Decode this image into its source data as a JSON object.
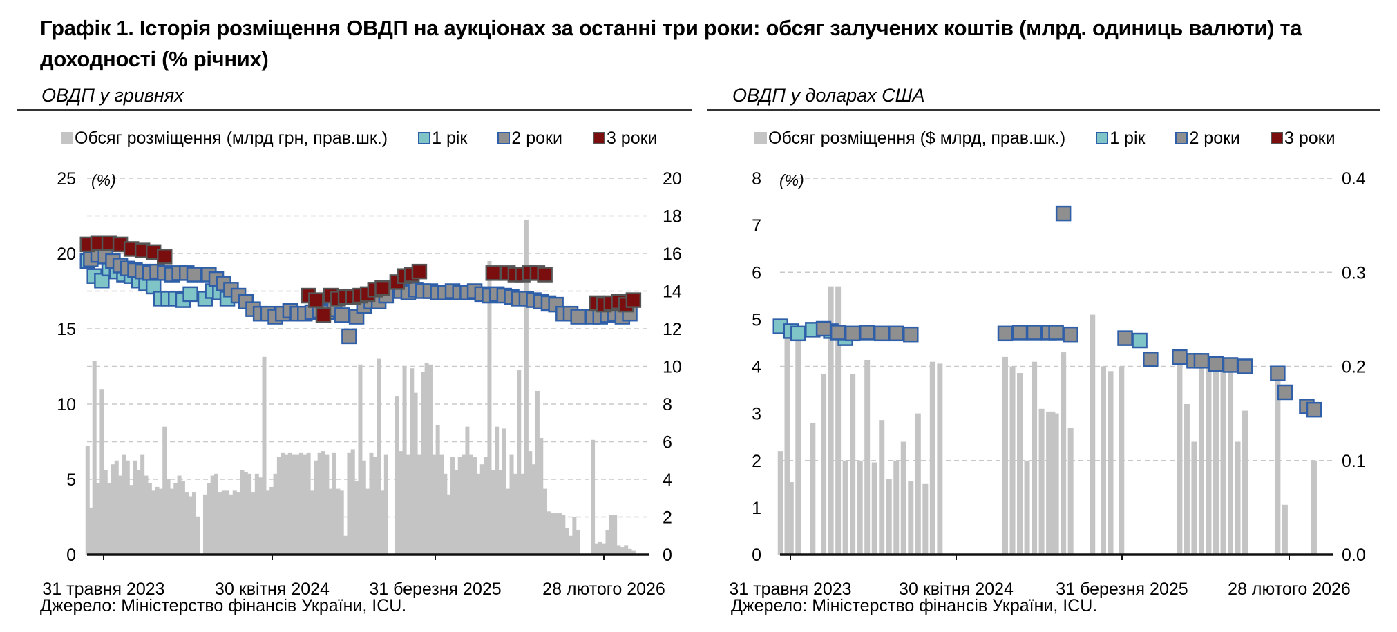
{
  "title": "Графік 1. Історія розміщення ОВДП на аукціонах за останні три роки: обсяг залучених коштів (млрд. одиниць валюти) та доходності (% річних)",
  "colors": {
    "volume": "#c4c4c4",
    "y1_fill": "#7fc5c8",
    "y2_fill": "#8f8f8f",
    "y3_fill": "#7a0d0d",
    "marker_border": "#2f5fa8",
    "grid": "#c8c8c8"
  },
  "panels": {
    "uah": {
      "subtitle": "ОВДП у гривнях",
      "legend": {
        "volume": "Обсяг розміщення (млрд грн, прав.шк.)",
        "y1": "1 рік",
        "y2": "2 роки",
        "y3": "3 роки"
      },
      "unit_label": "(%)",
      "source": "Джерело: Міністерство фінансів України, ICU."
    },
    "usd": {
      "subtitle": "ОВДП у доларах США",
      "legend": {
        "volume": "Обсяг розміщення ($ млрд, прав.шк.)",
        "y1": "1 рік",
        "y2": "2 роки",
        "y3": "3 роки"
      },
      "unit_label": "(%)",
      "source": "Джерело: Міністерство фінансів України, ICU."
    }
  },
  "chart_data": [
    {
      "type": "bar+scatter",
      "id": "uah",
      "x_tick_labels": [
        "31 травня 2023",
        "30 квітня 2024",
        "31 березня 2025",
        "28 лютого 2026"
      ],
      "x_range": [
        "2023-05-31",
        "2026-04-30"
      ],
      "y_left": {
        "min": 0,
        "max": 25,
        "ticks": [
          0,
          5,
          10,
          15,
          20,
          25
        ]
      },
      "y_right": {
        "min": 0,
        "max": 20,
        "ticks": [
          0,
          2,
          4,
          6,
          8,
          10,
          12,
          14,
          16,
          18,
          20
        ]
      },
      "grid": true,
      "volume_series": {
        "name": "Обсяг розміщення (млрд грн, прав.шк.)",
        "axis": "right",
        "x": [
          "2023-06-01",
          "2023-06-07",
          "2023-06-14",
          "2023-06-21",
          "2023-06-28",
          "2023-07-05",
          "2023-07-12",
          "2023-07-19",
          "2023-07-26",
          "2023-08-02",
          "2023-08-09",
          "2023-08-16",
          "2023-08-23",
          "2023-08-30",
          "2023-09-06",
          "2023-09-13",
          "2023-09-20",
          "2023-09-27",
          "2023-10-04",
          "2023-10-11",
          "2023-10-18",
          "2023-10-25",
          "2023-11-01",
          "2023-11-08",
          "2023-11-15",
          "2023-11-22",
          "2023-11-29",
          "2023-12-06",
          "2023-12-13",
          "2023-12-20",
          "2023-12-27",
          "2024-01-10",
          "2024-01-17",
          "2024-01-24",
          "2024-01-31",
          "2024-02-07",
          "2024-02-14",
          "2024-02-21",
          "2024-02-28",
          "2024-03-06",
          "2024-03-13",
          "2024-03-20",
          "2024-03-27",
          "2024-04-03",
          "2024-04-10",
          "2024-04-17",
          "2024-04-24",
          "2024-05-01",
          "2024-05-08",
          "2024-05-15",
          "2024-05-22",
          "2024-05-29",
          "2024-06-05",
          "2024-06-12",
          "2024-06-19",
          "2024-06-26",
          "2024-07-03",
          "2024-07-10",
          "2024-07-17",
          "2024-07-24",
          "2024-07-31",
          "2024-08-07",
          "2024-08-14",
          "2024-08-21",
          "2024-08-28",
          "2024-09-04",
          "2024-09-11",
          "2024-09-18",
          "2024-09-25",
          "2024-10-02",
          "2024-10-09",
          "2024-10-16",
          "2024-10-23",
          "2024-10-30",
          "2024-11-06",
          "2024-11-13",
          "2024-11-20",
          "2024-11-27",
          "2024-12-04",
          "2024-12-11",
          "2024-12-18",
          "2025-01-08",
          "2025-01-15",
          "2025-01-22",
          "2025-01-29",
          "2025-02-05",
          "2025-02-12",
          "2025-02-19",
          "2025-02-26",
          "2025-03-05",
          "2025-03-12",
          "2025-03-19",
          "2025-03-26",
          "2025-04-02",
          "2025-04-09",
          "2025-04-16",
          "2025-04-23",
          "2025-04-30",
          "2025-05-07",
          "2025-05-14",
          "2025-05-21",
          "2025-05-28",
          "2025-06-04",
          "2025-06-11",
          "2025-06-18",
          "2025-06-25",
          "2025-07-02",
          "2025-07-09",
          "2025-07-16",
          "2025-07-23",
          "2025-07-30",
          "2025-08-06",
          "2025-08-13",
          "2025-08-20",
          "2025-08-27",
          "2025-09-03",
          "2025-09-10",
          "2025-09-17",
          "2025-09-24",
          "2025-10-01",
          "2025-10-08",
          "2025-10-15",
          "2025-10-22",
          "2025-10-29",
          "2025-11-05",
          "2025-11-12",
          "2025-11-19",
          "2025-11-26",
          "2025-12-03",
          "2025-12-10",
          "2025-12-17",
          "2026-01-14",
          "2026-01-21",
          "2026-01-28",
          "2026-02-04",
          "2026-02-11",
          "2026-02-18",
          "2026-02-25",
          "2026-03-04",
          "2026-03-11",
          "2026-03-18",
          "2026-03-25",
          "2026-04-01"
        ],
        "values": [
          5.8,
          2.5,
          10.3,
          3.8,
          8.8,
          4.5,
          3.8,
          4.8,
          5.0,
          4.2,
          5.3,
          5.0,
          3.7,
          5.0,
          4.5,
          5.3,
          4.2,
          3.8,
          3.4,
          3.6,
          3.5,
          6.8,
          4.0,
          3.5,
          3.8,
          4.2,
          3.9,
          3.3,
          3.1,
          3.3,
          2.0,
          3.2,
          3.8,
          4.2,
          4.3,
          3.3,
          3.4,
          3.4,
          3.2,
          3.4,
          3.3,
          4.5,
          4.4,
          4.3,
          3.3,
          4.3,
          4.1,
          10.5,
          3.4,
          3.6,
          4.3,
          5.2,
          5.4,
          5.3,
          5.4,
          5.3,
          5.3,
          5.4,
          5.3,
          5.4,
          3.4,
          5.0,
          5.4,
          5.5,
          5.3,
          3.5,
          5.4,
          3.5,
          3.4,
          1.0,
          5.4,
          5.6,
          3.9,
          10.1,
          5.0,
          3.5,
          5.4,
          5.2,
          10.4,
          3.4,
          5.3,
          8.4,
          5.5,
          10.0,
          5.3,
          9.9,
          8.6,
          5.3,
          9.7,
          10.2,
          10.1,
          5.3,
          6.9,
          5.3,
          4.3,
          3.2,
          5.2,
          4.5,
          5.2,
          5.3,
          6.8,
          5.3,
          5.2,
          4.3,
          4.8,
          5.2,
          15.6,
          4.5,
          6.8,
          4.5,
          6.7,
          3.5,
          5.3,
          4.3,
          9.8,
          4.3,
          17.8,
          5.5,
          4.8,
          8.7,
          6.2,
          3.5,
          2.3,
          2.2,
          2.2,
          2.2,
          2.1,
          1.4,
          1.0,
          2.0,
          1.3,
          6.1,
          0.6,
          0.7,
          0.6,
          1.3,
          2.1,
          2.1,
          0.5,
          0.4,
          0.5,
          0.3,
          0.2
        ]
      },
      "yield_series": [
        {
          "name": "1 рік",
          "axis": "left",
          "x": [
            "2023-06-01",
            "2023-06-14",
            "2023-06-28",
            "2023-07-12",
            "2023-07-26",
            "2023-08-09",
            "2023-08-23",
            "2023-09-06",
            "2023-09-20",
            "2023-10-04",
            "2023-10-18",
            "2023-11-01",
            "2023-11-15",
            "2023-11-29",
            "2023-12-13",
            "2024-01-10",
            "2024-01-24",
            "2024-02-07",
            "2024-02-21"
          ],
          "values": [
            19.5,
            18.5,
            18.2,
            19.0,
            18.8,
            18.6,
            18.5,
            18.2,
            18.0,
            17.8,
            17.0,
            17.0,
            17.0,
            16.9,
            17.3,
            17.0,
            17.5,
            17.4,
            17.0
          ]
        },
        {
          "name": "2 роки",
          "axis": "left",
          "x": [
            "2023-06-07",
            "2023-06-21",
            "2023-07-05",
            "2023-07-19",
            "2023-08-02",
            "2023-08-16",
            "2023-08-30",
            "2023-09-13",
            "2023-09-27",
            "2023-10-11",
            "2023-10-25",
            "2023-11-08",
            "2023-11-22",
            "2023-12-06",
            "2023-12-20",
            "2024-01-17",
            "2024-01-31",
            "2024-02-14",
            "2024-02-28",
            "2024-03-13",
            "2024-03-27",
            "2024-04-10",
            "2024-04-24",
            "2024-05-08",
            "2024-05-22",
            "2024-06-05",
            "2024-06-19",
            "2024-07-03",
            "2024-07-17",
            "2024-07-31",
            "2024-08-14",
            "2024-08-28",
            "2024-09-11",
            "2024-09-25",
            "2024-10-09",
            "2024-10-23",
            "2024-11-06",
            "2024-11-20",
            "2024-12-04",
            "2024-12-18",
            "2025-01-15",
            "2025-01-29",
            "2025-02-12",
            "2025-02-26",
            "2025-03-12",
            "2025-03-26",
            "2025-04-09",
            "2025-04-23",
            "2025-05-07",
            "2025-05-21",
            "2025-06-04",
            "2025-06-18",
            "2025-07-02",
            "2025-07-16",
            "2025-07-30",
            "2025-08-13",
            "2025-08-27",
            "2025-09-10",
            "2025-09-24",
            "2025-10-08",
            "2025-10-22",
            "2025-11-05",
            "2025-11-19",
            "2025-12-03",
            "2025-12-17",
            "2026-01-14",
            "2026-01-28",
            "2026-02-11",
            "2026-02-25",
            "2026-03-11",
            "2026-03-25"
          ],
          "values": [
            19.6,
            19.9,
            19.8,
            19.5,
            19.2,
            19.0,
            18.9,
            18.8,
            18.7,
            18.8,
            18.7,
            18.6,
            18.7,
            18.7,
            18.6,
            18.6,
            18.3,
            18.0,
            17.6,
            17.2,
            16.8,
            16.3,
            16.0,
            16.0,
            15.8,
            16.0,
            16.2,
            16.0,
            16.0,
            16.1,
            16.2,
            16.1,
            16.3,
            15.9,
            14.5,
            15.8,
            16.5,
            16.8,
            16.8,
            17.2,
            17.5,
            17.4,
            17.6,
            17.5,
            17.5,
            17.4,
            17.4,
            17.5,
            17.4,
            17.4,
            17.5,
            17.3,
            17.2,
            17.3,
            17.2,
            17.1,
            17.0,
            17.0,
            16.9,
            16.8,
            16.7,
            16.6,
            16.0,
            16.0,
            15.8,
            15.8,
            15.8,
            15.9,
            16.0,
            15.8,
            16.0
          ]
        },
        {
          "name": "3 роки",
          "axis": "left",
          "x": [
            "2023-06-01",
            "2023-06-21",
            "2023-07-12",
            "2023-08-02",
            "2023-08-23",
            "2023-09-13",
            "2023-10-04",
            "2023-10-25",
            "2024-07-24",
            "2024-08-07",
            "2024-08-21",
            "2024-09-04",
            "2024-09-18",
            "2024-10-02",
            "2024-10-16",
            "2024-10-30",
            "2024-11-13",
            "2024-11-27",
            "2024-12-11",
            "2025-01-08",
            "2025-01-22",
            "2025-02-05",
            "2025-02-19",
            "2025-07-09",
            "2025-08-06",
            "2025-08-20",
            "2025-09-03",
            "2025-09-17",
            "2025-10-01",
            "2025-10-15",
            "2026-01-21",
            "2026-02-04",
            "2026-02-18",
            "2026-03-04",
            "2026-03-18",
            "2026-04-01"
          ],
          "values": [
            20.6,
            20.7,
            20.7,
            20.6,
            20.3,
            20.2,
            20.1,
            19.8,
            17.2,
            16.9,
            15.9,
            17.2,
            17.0,
            17.1,
            17.1,
            17.2,
            17.3,
            17.6,
            17.7,
            18.1,
            18.5,
            18.6,
            18.8,
            18.7,
            18.7,
            18.6,
            18.6,
            18.7,
            18.7,
            18.6,
            16.7,
            16.6,
            16.7,
            16.8,
            16.6,
            16.9
          ]
        }
      ]
    },
    {
      "type": "bar+scatter",
      "id": "usd",
      "x_tick_labels": [
        "31 травня 2023",
        "30 квітня 2024",
        "31 березня 2025",
        "28 лютого 2026"
      ],
      "x_range": [
        "2023-05-31",
        "2026-04-30"
      ],
      "y_left": {
        "min": 0,
        "max": 8,
        "ticks": [
          0,
          1,
          2,
          3,
          4,
          5,
          6,
          7,
          8
        ]
      },
      "y_right": {
        "min": 0,
        "max": 0.4,
        "ticks": [
          0.0,
          0.1,
          0.2,
          0.3,
          0.4
        ]
      },
      "y_right_tick_labels": [
        "0.0",
        "0.1",
        "0.2",
        "0.3",
        "0.4"
      ],
      "grid": true,
      "volume_series": {
        "name": "Обсяг розміщення ($ млрд, прав.шк.)",
        "axis": "right",
        "x": [
          "2023-06-01",
          "2023-06-14",
          "2023-06-21",
          "2023-07-05",
          "2023-08-02",
          "2023-08-23",
          "2023-09-06",
          "2023-09-20",
          "2023-10-04",
          "2023-10-18",
          "2023-11-01",
          "2023-11-15",
          "2023-11-29",
          "2023-12-13",
          "2023-12-27",
          "2024-01-10",
          "2024-01-24",
          "2024-02-07",
          "2024-02-21",
          "2024-03-06",
          "2024-03-20",
          "2024-04-03",
          "2024-08-07",
          "2024-08-21",
          "2024-09-04",
          "2024-09-18",
          "2024-10-02",
          "2024-10-16",
          "2024-10-30",
          "2024-11-06",
          "2024-11-13",
          "2024-11-27",
          "2024-12-11",
          "2025-01-22",
          "2025-02-12",
          "2025-02-26",
          "2025-03-19",
          "2025-07-09",
          "2025-07-23",
          "2025-08-06",
          "2025-08-20",
          "2025-09-03",
          "2025-09-17",
          "2025-10-01",
          "2025-10-15",
          "2025-10-29",
          "2025-11-12",
          "2026-01-14",
          "2026-01-28",
          "2026-03-25"
        ],
        "values": [
          0.11,
          0.235,
          0.077,
          0.23,
          0.14,
          0.192,
          0.285,
          0.285,
          0.1,
          0.192,
          0.1,
          0.207,
          0.098,
          0.143,
          0.08,
          0.1,
          0.12,
          0.078,
          0.15,
          0.075,
          0.205,
          0.203,
          0.21,
          0.2,
          0.193,
          0.1,
          0.205,
          0.155,
          0.152,
          0.152,
          0.15,
          0.215,
          0.135,
          0.255,
          0.2,
          0.195,
          0.2,
          0.215,
          0.16,
          0.12,
          0.21,
          0.2,
          0.2,
          0.2,
          0.195,
          0.12,
          0.153,
          0.2,
          0.053,
          0.1
        ]
      },
      "yield_series": [
        {
          "name": "1 рік",
          "axis": "left",
          "x": [
            "2023-06-01",
            "2023-06-21",
            "2023-07-05",
            "2023-08-02",
            "2023-09-06",
            "2023-10-04",
            "2025-04-23"
          ],
          "values": [
            4.85,
            4.75,
            4.7,
            4.78,
            4.75,
            4.6,
            4.55
          ]
        },
        {
          "name": "2 роки",
          "axis": "left",
          "x": [
            "2023-08-23",
            "2023-09-20",
            "2023-10-18",
            "2023-11-15",
            "2023-12-13",
            "2024-01-10",
            "2024-02-07",
            "2024-08-07",
            "2024-09-04",
            "2024-10-02",
            "2024-10-30",
            "2024-11-13",
            "2024-11-27",
            "2024-12-11",
            "2025-03-26",
            "2025-05-14",
            "2025-07-09",
            "2025-08-06",
            "2025-08-20",
            "2025-09-17",
            "2025-10-15",
            "2025-11-12",
            "2026-01-14",
            "2026-01-28",
            "2026-03-11",
            "2026-03-25"
          ],
          "values": [
            4.8,
            4.72,
            4.7,
            4.72,
            4.7,
            4.7,
            4.68,
            4.7,
            4.72,
            4.72,
            4.72,
            4.72,
            7.25,
            4.68,
            4.6,
            4.15,
            4.2,
            4.12,
            4.12,
            4.05,
            4.03,
            4.0,
            3.85,
            3.45,
            3.15,
            3.08
          ]
        },
        {
          "name": "3 роки",
          "axis": "left",
          "x": [],
          "values": []
        }
      ]
    }
  ]
}
